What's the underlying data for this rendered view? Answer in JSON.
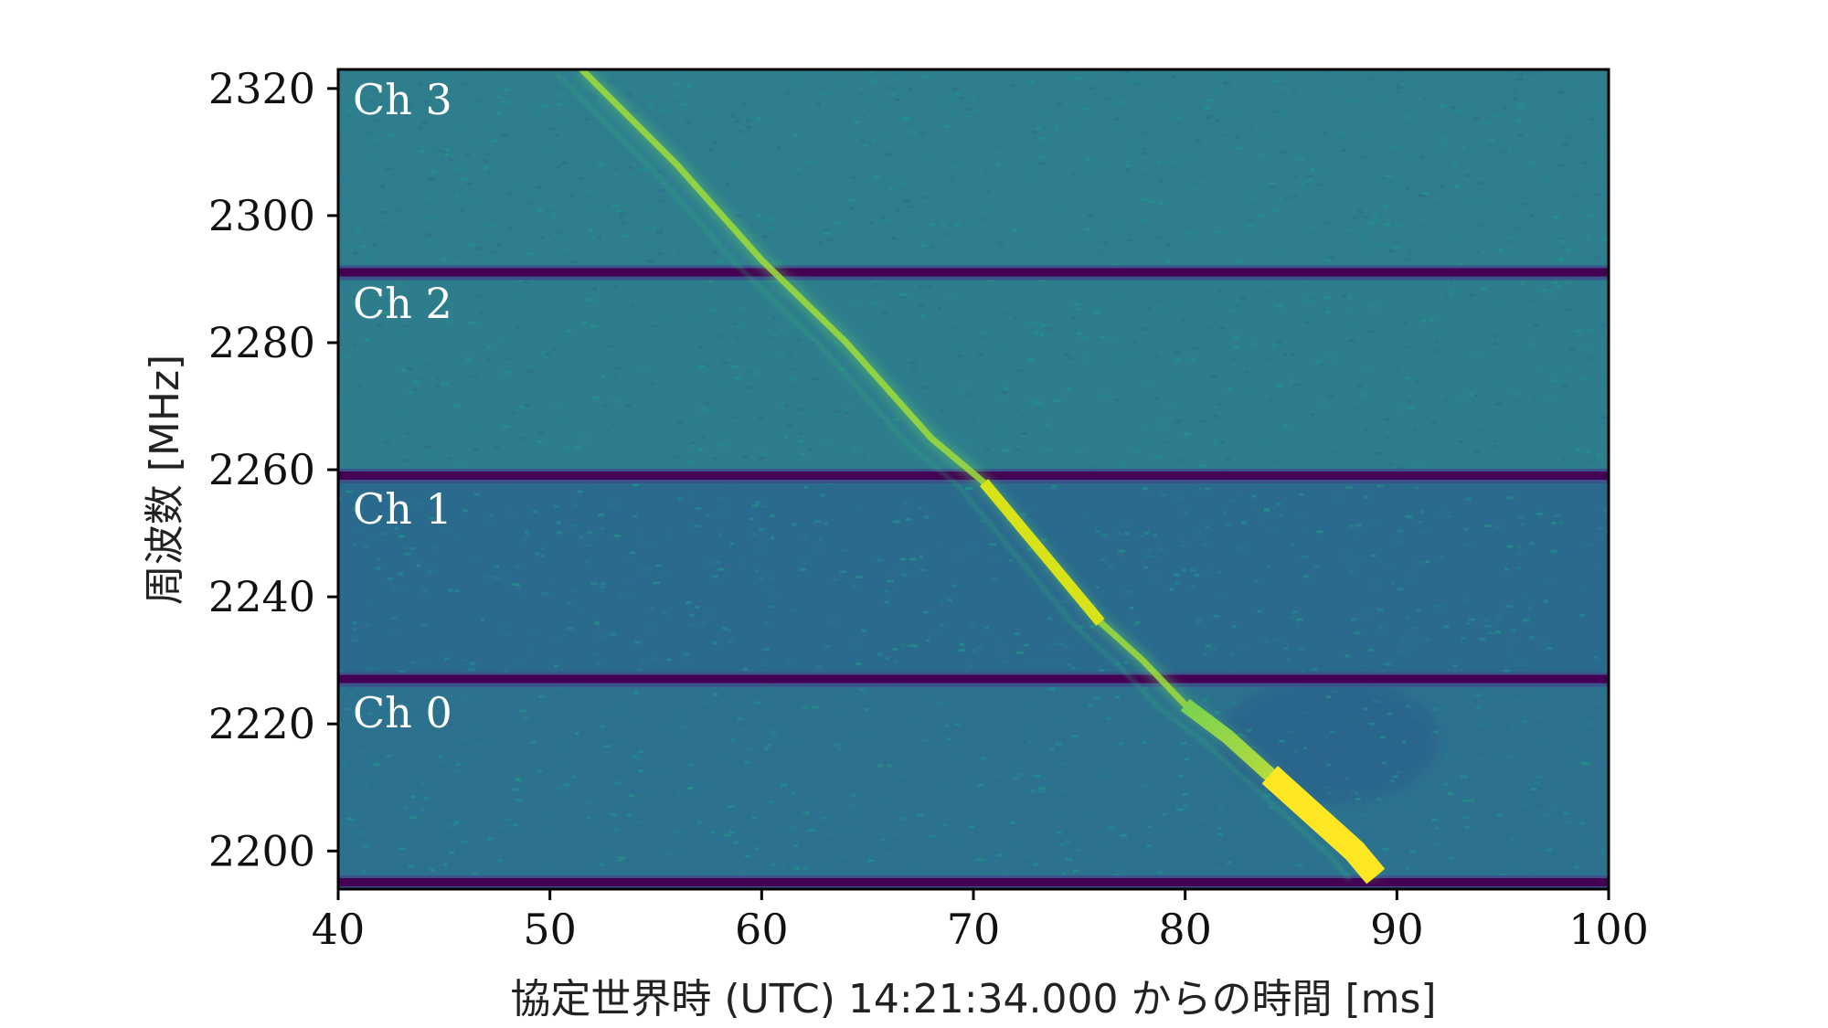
{
  "chart_data": {
    "type": "heatmap",
    "subtype": "dynamic-spectrum",
    "xlabel": "協定世界時 (UTC) 14:21:34.000 からの時間 [ms]",
    "ylabel": "周波数 [MHz]",
    "xlim": [
      40,
      100
    ],
    "ylim": [
      2194,
      2323
    ],
    "x_ticks": [
      40,
      50,
      60,
      70,
      80,
      90,
      100
    ],
    "y_ticks": [
      2200,
      2220,
      2240,
      2260,
      2280,
      2300,
      2320
    ],
    "colormap": "viridis",
    "grid": false,
    "channels": [
      {
        "label": "Ch 0",
        "freq_range": [
          2195,
          2227
        ]
      },
      {
        "label": "Ch 1",
        "freq_range": [
          2227,
          2259
        ]
      },
      {
        "label": "Ch 2",
        "freq_range": [
          2259,
          2291
        ]
      },
      {
        "label": "Ch 3",
        "freq_range": [
          2291,
          2323
        ]
      }
    ],
    "channel_gaps_mhz": [
      2195,
      2227,
      2259,
      2291
    ],
    "burst_track": {
      "x_ms": [
        51.5,
        56,
        60,
        64,
        68,
        70.5,
        72,
        74,
        76,
        78,
        80,
        82,
        84,
        86,
        88,
        89
      ],
      "y_mhz": [
        2323,
        2308,
        2293,
        2280,
        2265,
        2258,
        2252,
        2244,
        2236,
        2230,
        2223,
        2218,
        2212,
        2206,
        2200,
        2196
      ]
    }
  }
}
